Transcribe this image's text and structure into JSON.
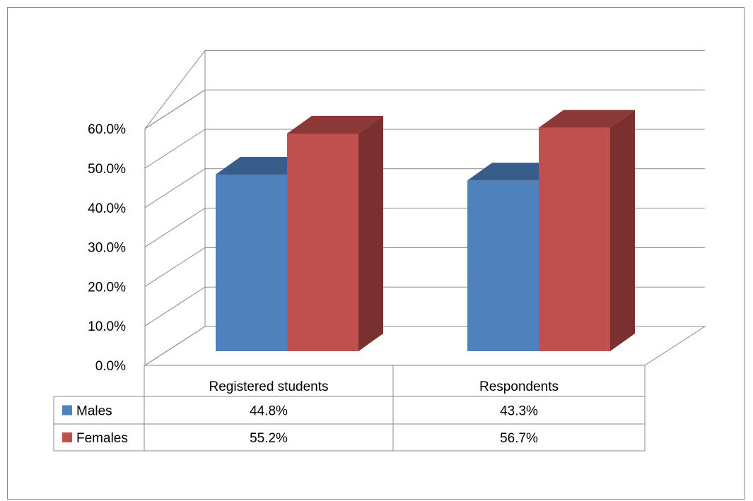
{
  "chart_data": {
    "type": "bar",
    "categories": [
      "Registered students",
      "Respondents"
    ],
    "series": [
      {
        "name": "Males",
        "values": [
          44.8,
          43.3
        ],
        "color": "#4f81bd",
        "top": "#385d8a",
        "side": "#2f4f77"
      },
      {
        "name": "Females",
        "values": [
          55.2,
          56.7
        ],
        "color": "#c0504d",
        "top": "#8c3836",
        "side": "#7a302e"
      }
    ],
    "table_values": [
      [
        "44.8%",
        "43.3%"
      ],
      [
        "55.2%",
        "56.7%"
      ]
    ],
    "ylim": [
      0,
      60
    ],
    "yticks": [
      "0.0%",
      "10.0%",
      "20.0%",
      "30.0%",
      "40.0%",
      "50.0%",
      "60.0%"
    ],
    "grid": true,
    "legend": "data-table"
  }
}
